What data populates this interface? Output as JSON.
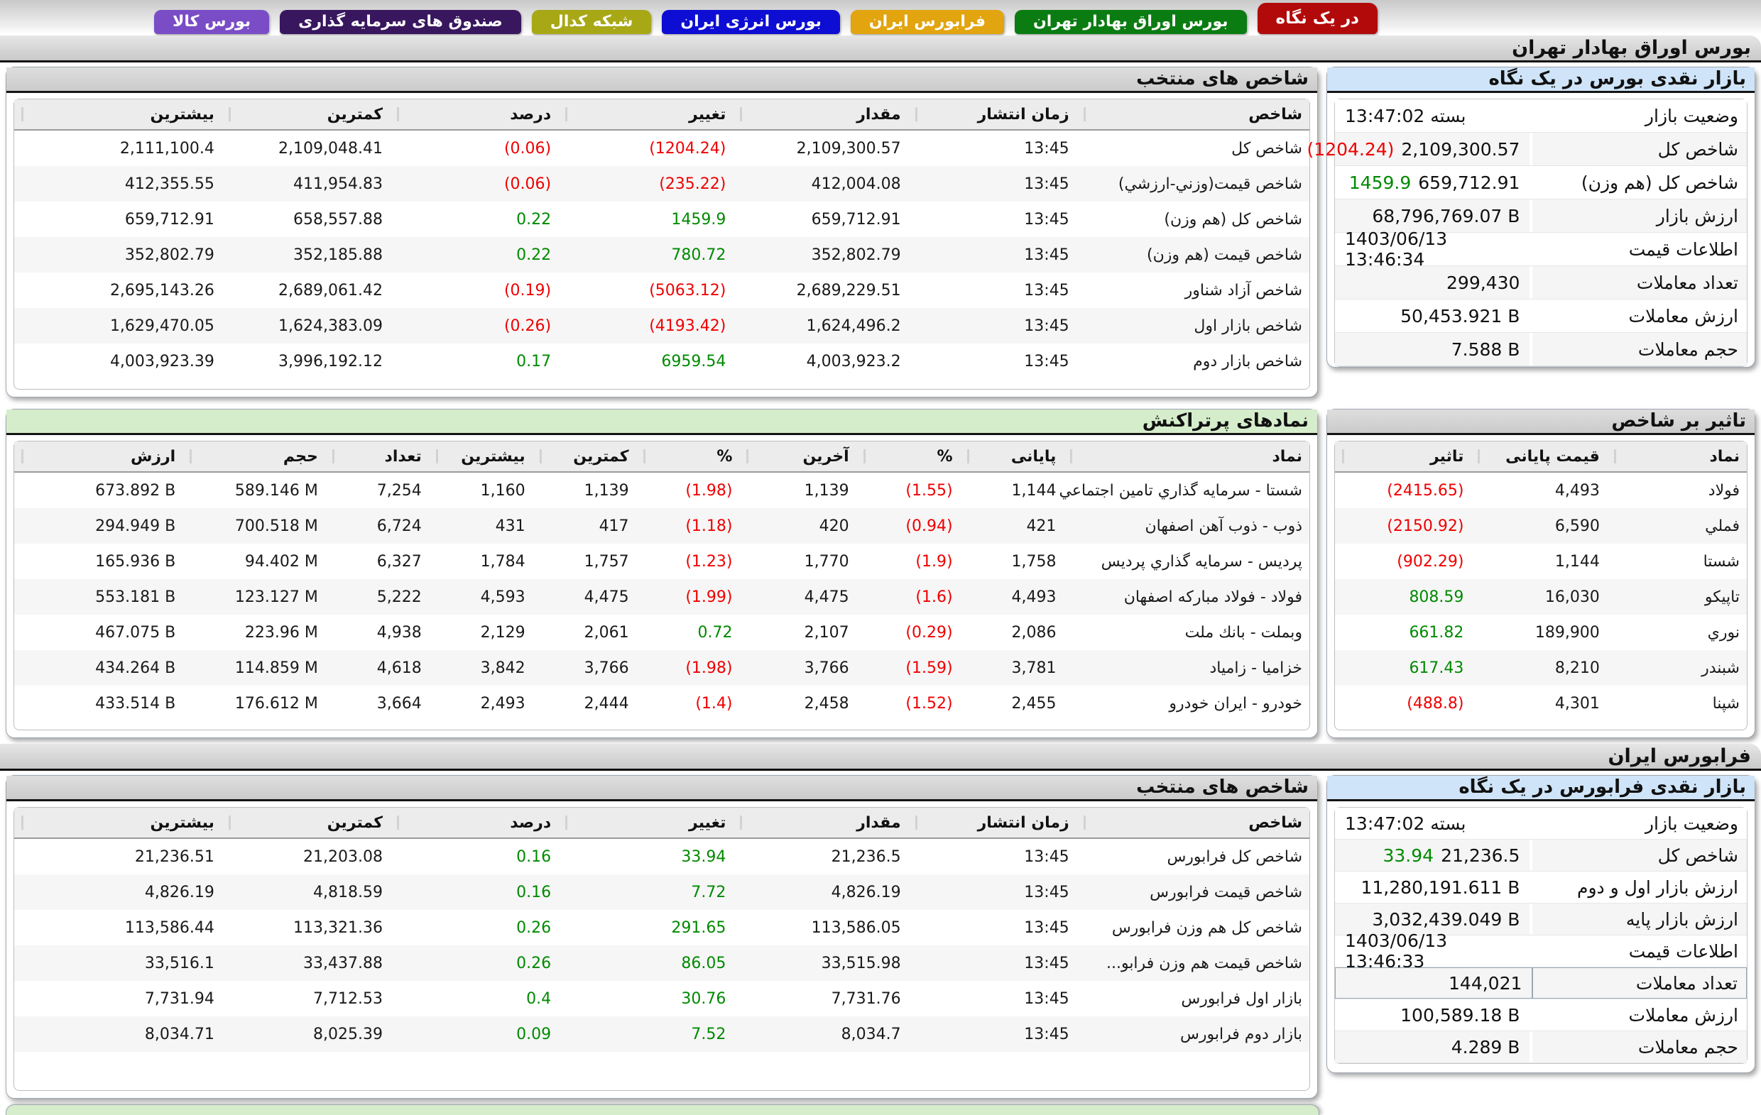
{
  "tabs": [
    {
      "label": "در یک نگاه",
      "color": "#b20a0a",
      "active": true
    },
    {
      "label": "بورس اوراق بهادار تهران",
      "color": "#0b7c12",
      "active": false
    },
    {
      "label": "فرابورس ایران",
      "color": "#e2a40f",
      "active": false
    },
    {
      "label": "بورس انرژی ایران",
      "color": "#0d0dd3",
      "active": false
    },
    {
      "label": "شبکه کدال",
      "color": "#a8a816",
      "active": false
    },
    {
      "label": "صندوق های سرمایه گذاری",
      "color": "#38175e",
      "active": false
    },
    {
      "label": "بورس کالا",
      "color": "#7a4cc6",
      "active": false
    }
  ],
  "tse_section": {
    "title": "بورس اوراق بهادار تهران",
    "glance": {
      "title": "بازار نقدی بورس در یک نگاه",
      "rows": [
        {
          "label": "وضعیت بازار",
          "value": "بسته 13:47:02",
          "dir": "rtl"
        },
        {
          "label": "شاخص کل",
          "value": "2,109,300.57",
          "extra": "(1204.24)",
          "extra_color": "neg"
        },
        {
          "label": "شاخص کل (هم وزن)",
          "value": "659,712.91",
          "extra": "1459.9",
          "extra_color": "pos"
        },
        {
          "label": "ارزش بازار",
          "value": "68,796,769.07 B"
        },
        {
          "label": "اطلاعات قیمت",
          "value": "1403/06/13 13:46:34"
        },
        {
          "label": "تعداد معاملات",
          "value": "299,430"
        },
        {
          "label": "ارزش معاملات",
          "value": "50,453.921 B"
        },
        {
          "label": "حجم معاملات",
          "value": "7.588 B"
        }
      ]
    },
    "indices": {
      "title": "شاخص های منتخب",
      "headers": [
        "شاخص",
        "زمان انتشار",
        "مقدار",
        "تغییر",
        "درصد",
        "کمترین",
        "بیشترین"
      ],
      "rows": [
        [
          "شاخص کل",
          "13:45",
          "2,109,300.57",
          {
            "t": "(1204.24)",
            "c": "neg"
          },
          {
            "t": "(0.06)",
            "c": "neg"
          },
          "2,109,048.41",
          "2,111,100.4"
        ],
        [
          "شاخص قیمت(وزني-ارزشي)",
          "13:45",
          "412,004.08",
          {
            "t": "(235.22)",
            "c": "neg"
          },
          {
            "t": "(0.06)",
            "c": "neg"
          },
          "411,954.83",
          "412,355.55"
        ],
        [
          "شاخص کل (هم وزن)",
          "13:45",
          "659,712.91",
          {
            "t": "1459.9",
            "c": "pos"
          },
          {
            "t": "0.22",
            "c": "pos"
          },
          "658,557.88",
          "659,712.91"
        ],
        [
          "شاخص قیمت (هم وزن)",
          "13:45",
          "352,802.79",
          {
            "t": "780.72",
            "c": "pos"
          },
          {
            "t": "0.22",
            "c": "pos"
          },
          "352,185.88",
          "352,802.79"
        ],
        [
          "شاخص آزاد شناور",
          "13:45",
          "2,689,229.51",
          {
            "t": "(5063.12)",
            "c": "neg"
          },
          {
            "t": "(0.19)",
            "c": "neg"
          },
          "2,689,061.42",
          "2,695,143.26"
        ],
        [
          "شاخص بازار اول",
          "13:45",
          "1,624,496.2",
          {
            "t": "(4193.42)",
            "c": "neg"
          },
          {
            "t": "(0.26)",
            "c": "neg"
          },
          "1,624,383.09",
          "1,629,470.05"
        ],
        [
          "شاخص بازار دوم",
          "13:45",
          "4,003,923.2",
          {
            "t": "6959.54",
            "c": "pos"
          },
          {
            "t": "0.17",
            "c": "pos"
          },
          "3,996,192.12",
          "4,003,923.39"
        ]
      ]
    },
    "top_symbols": {
      "title": "نمادهای پرتراکنش",
      "headers": [
        "نماد",
        "پایانی",
        "%",
        "آخرین",
        "%",
        "کمترین",
        "بیشترین",
        "تعداد",
        "حجم",
        "ارزش"
      ],
      "rows": [
        [
          "شستا - سرمایه گذاري تامین اجتماعي",
          "1,144",
          {
            "t": "(1.55)",
            "c": "neg"
          },
          "1,139",
          {
            "t": "(1.98)",
            "c": "neg"
          },
          "1,139",
          "1,160",
          "7,254",
          "589.146 M",
          "673.892 B"
        ],
        [
          "ذوب - ذوب آهن اصفهان",
          "421",
          {
            "t": "(0.94)",
            "c": "neg"
          },
          "420",
          {
            "t": "(1.18)",
            "c": "neg"
          },
          "417",
          "431",
          "6,724",
          "700.518 M",
          "294.949 B"
        ],
        [
          "پردیس - سرمایه گذاري پردیس",
          "1,758",
          {
            "t": "(1.9)",
            "c": "neg"
          },
          "1,770",
          {
            "t": "(1.23)",
            "c": "neg"
          },
          "1,757",
          "1,784",
          "6,327",
          "94.402 M",
          "165.936 B"
        ],
        [
          "فولاد - فولاد مباركه اصفهان",
          "4,493",
          {
            "t": "(1.6)",
            "c": "neg"
          },
          "4,475",
          {
            "t": "(1.99)",
            "c": "neg"
          },
          "4,475",
          "4,593",
          "5,222",
          "123.127 M",
          "553.181 B"
        ],
        [
          "وبملت - بانك ملت",
          "2,086",
          {
            "t": "(0.29)",
            "c": "neg"
          },
          "2,107",
          {
            "t": "0.72",
            "c": "pos"
          },
          "2,061",
          "2,129",
          "4,938",
          "223.96 M",
          "467.075 B"
        ],
        [
          "خزامیا - زامیاد",
          "3,781",
          {
            "t": "(1.59)",
            "c": "neg"
          },
          "3,766",
          {
            "t": "(1.98)",
            "c": "neg"
          },
          "3,766",
          "3,842",
          "4,618",
          "114.859 M",
          "434.264 B"
        ],
        [
          "خودرو - ایران خودرو",
          "2,455",
          {
            "t": "(1.52)",
            "c": "neg"
          },
          "2,458",
          {
            "t": "(1.4)",
            "c": "neg"
          },
          "2,444",
          "2,493",
          "3,664",
          "176.612 M",
          "433.514 B"
        ]
      ]
    },
    "impact": {
      "title": "تاثیر بر شاخص",
      "headers": [
        "نماد",
        "قیمت پایانی",
        "تاثیر"
      ],
      "rows": [
        [
          "فولاد",
          "4,493",
          {
            "t": "(2415.65)",
            "c": "neg"
          }
        ],
        [
          "فملي",
          "6,590",
          {
            "t": "(2150.92)",
            "c": "neg"
          }
        ],
        [
          "شستا",
          "1,144",
          {
            "t": "(902.29)",
            "c": "neg"
          }
        ],
        [
          "تاپیکو",
          "16,030",
          {
            "t": "808.59",
            "c": "pos"
          }
        ],
        [
          "نوري",
          "189,900",
          {
            "t": "661.82",
            "c": "pos"
          }
        ],
        [
          "شبندر",
          "8,210",
          {
            "t": "617.43",
            "c": "pos"
          }
        ],
        [
          "شپنا",
          "4,301",
          {
            "t": "(488.8)",
            "c": "neg"
          }
        ]
      ]
    }
  },
  "fara_section": {
    "title": "فرابورس ایران",
    "glance": {
      "title": "بازار نقدی فرابورس در یک نگاه",
      "rows": [
        {
          "label": "وضعیت بازار",
          "value": "بسته 13:47:02",
          "dir": "rtl"
        },
        {
          "label": "شاخص کل",
          "value": "21,236.5",
          "extra": "33.94",
          "extra_color": "pos"
        },
        {
          "label": "ارزش بازار اول و دوم",
          "value": "11,280,191.611 B"
        },
        {
          "label": "ارزش بازار پایه",
          "value": "3,032,439.049 B"
        },
        {
          "label": "اطلاعات قیمت",
          "value": "1403/06/13 13:46:33"
        },
        {
          "label": "تعداد معاملات",
          "value": "144,021",
          "focused": true
        },
        {
          "label": "ارزش معاملات",
          "value": "100,589.18 B"
        },
        {
          "label": "حجم معاملات",
          "value": "4.289 B"
        }
      ]
    },
    "indices": {
      "title": "شاخص های منتخب",
      "headers": [
        "شاخص",
        "زمان انتشار",
        "مقدار",
        "تغییر",
        "درصد",
        "کمترین",
        "بیشترین"
      ],
      "rows": [
        [
          "شاخص کل فرابورس",
          "13:45",
          "21,236.5",
          {
            "t": "33.94",
            "c": "pos"
          },
          {
            "t": "0.16",
            "c": "pos"
          },
          "21,203.08",
          "21,236.51"
        ],
        [
          "شاخص قیمت فرابورس",
          "13:45",
          "4,826.19",
          {
            "t": "7.72",
            "c": "pos"
          },
          {
            "t": "0.16",
            "c": "pos"
          },
          "4,818.59",
          "4,826.19"
        ],
        [
          "شاخص کل هم وزن فرابورس",
          "13:45",
          "113,586.05",
          {
            "t": "291.65",
            "c": "pos"
          },
          {
            "t": "0.26",
            "c": "pos"
          },
          "113,321.36",
          "113,586.44"
        ],
        [
          "شاخص قیمت هم وزن فرابو...",
          "13:45",
          "33,515.98",
          {
            "t": "86.05",
            "c": "pos"
          },
          {
            "t": "0.26",
            "c": "pos"
          },
          "33,437.88",
          "33,516.1"
        ],
        [
          "بازار اول فرابورس",
          "13:45",
          "7,731.76",
          {
            "t": "30.76",
            "c": "pos"
          },
          {
            "t": "0.4",
            "c": "pos"
          },
          "7,712.53",
          "7,731.94"
        ],
        [
          "بازار دوم فرابورس",
          "13:45",
          "8,034.7",
          {
            "t": "7.52",
            "c": "pos"
          },
          {
            "t": "0.09",
            "c": "pos"
          },
          "8,025.39",
          "8,034.71"
        ]
      ]
    }
  },
  "colors": {
    "negative": "#ef0000",
    "positive": "#008a00",
    "blue_header": "#cfe4f8",
    "green_header": "#d5edcb"
  }
}
